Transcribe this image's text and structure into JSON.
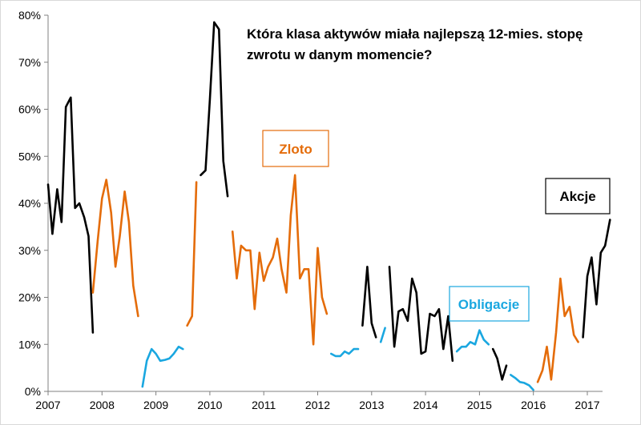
{
  "chart_data": {
    "type": "line",
    "title_lines": [
      "Która klasa aktywów miała najlepszą 12-mies. stopę",
      "zwrotu w danym momencie?"
    ],
    "xlabel": "",
    "ylabel": "",
    "xlim": [
      2007,
      2017.9
    ],
    "ylim": [
      0,
      80
    ],
    "x_ticks": [
      "2007",
      "2008",
      "2009",
      "2010",
      "2011",
      "2012",
      "2013",
      "2014",
      "2015",
      "2016",
      "2017"
    ],
    "y_ticks": [
      "0%",
      "10%",
      "20%",
      "30%",
      "40%",
      "50%",
      "60%",
      "70%",
      "80%"
    ],
    "grid": false,
    "colors": {
      "Akcje": "#000000",
      "Zloto": "#E46C0A",
      "Obligacje": "#1AA7E0"
    },
    "labels": {
      "zloto": "Zloto",
      "akcje": "Akcje",
      "obligacje": "Obligacje"
    },
    "segments": [
      {
        "series": "Akcje",
        "points": [
          [
            2007.0,
            44
          ],
          [
            2007.08,
            33.5
          ],
          [
            2007.17,
            43
          ],
          [
            2007.25,
            36
          ],
          [
            2007.33,
            60.5
          ],
          [
            2007.42,
            62.5
          ],
          [
            2007.5,
            39
          ],
          [
            2007.58,
            40
          ],
          [
            2007.67,
            37
          ],
          [
            2007.75,
            33
          ],
          [
            2007.83,
            12.5
          ]
        ]
      },
      {
        "series": "Zloto",
        "points": [
          [
            2007.83,
            21
          ],
          [
            2007.92,
            32
          ],
          [
            2008.0,
            41
          ],
          [
            2008.08,
            45
          ],
          [
            2008.17,
            38
          ],
          [
            2008.25,
            26.5
          ],
          [
            2008.33,
            33
          ],
          [
            2008.42,
            42.5
          ],
          [
            2008.5,
            36
          ],
          [
            2008.58,
            22.5
          ],
          [
            2008.67,
            16
          ]
        ]
      },
      {
        "series": "Obligacje",
        "points": [
          [
            2008.75,
            1
          ],
          [
            2008.83,
            6.5
          ],
          [
            2008.92,
            9
          ],
          [
            2009.0,
            8
          ],
          [
            2009.08,
            6.5
          ],
          [
            2009.17,
            6.7
          ],
          [
            2009.25,
            7
          ],
          [
            2009.33,
            8
          ],
          [
            2009.42,
            9.5
          ],
          [
            2009.5,
            9
          ]
        ]
      },
      {
        "series": "Zloto",
        "points": [
          [
            2009.58,
            14
          ],
          [
            2009.67,
            16
          ],
          [
            2009.75,
            44.5
          ]
        ]
      },
      {
        "series": "Akcje",
        "points": [
          [
            2009.83,
            46
          ],
          [
            2009.92,
            47
          ],
          [
            2010.0,
            62
          ],
          [
            2010.08,
            78.5
          ],
          [
            2010.17,
            77
          ],
          [
            2010.25,
            49
          ],
          [
            2010.33,
            41.5
          ]
        ]
      },
      {
        "series": "Zloto",
        "points": [
          [
            2010.42,
            34
          ],
          [
            2010.5,
            24
          ],
          [
            2010.58,
            31
          ],
          [
            2010.67,
            30
          ],
          [
            2010.75,
            30
          ],
          [
            2010.83,
            17.5
          ],
          [
            2010.92,
            29.5
          ],
          [
            2011.0,
            23.5
          ],
          [
            2011.08,
            26.5
          ],
          [
            2011.17,
            28.5
          ],
          [
            2011.25,
            32.5
          ],
          [
            2011.33,
            26
          ],
          [
            2011.42,
            21
          ],
          [
            2011.5,
            37.5
          ],
          [
            2011.58,
            46
          ],
          [
            2011.67,
            24
          ],
          [
            2011.75,
            26
          ],
          [
            2011.83,
            26
          ],
          [
            2011.92,
            10
          ],
          [
            2012.0,
            30.5
          ],
          [
            2012.08,
            20
          ],
          [
            2012.17,
            16.5
          ]
        ]
      },
      {
        "series": "Obligacje",
        "points": [
          [
            2012.25,
            8
          ],
          [
            2012.33,
            7.5
          ],
          [
            2012.42,
            7.5
          ],
          [
            2012.5,
            8.5
          ],
          [
            2012.58,
            8
          ],
          [
            2012.67,
            9
          ],
          [
            2012.75,
            9
          ]
        ]
      },
      {
        "series": "Akcje",
        "points": [
          [
            2012.83,
            14
          ],
          [
            2012.92,
            26.5
          ],
          [
            2013.0,
            14.5
          ],
          [
            2013.08,
            11.5
          ]
        ]
      },
      {
        "series": "Obligacje",
        "points": [
          [
            2013.17,
            10.5
          ],
          [
            2013.25,
            13.5
          ]
        ]
      },
      {
        "series": "Akcje",
        "points": [
          [
            2013.33,
            26.5
          ],
          [
            2013.42,
            9.5
          ],
          [
            2013.5,
            17
          ],
          [
            2013.58,
            17.5
          ],
          [
            2013.67,
            15
          ],
          [
            2013.75,
            24
          ],
          [
            2013.83,
            21
          ],
          [
            2013.92,
            8
          ],
          [
            2014.0,
            8.5
          ],
          [
            2014.08,
            16.5
          ],
          [
            2014.17,
            16
          ],
          [
            2014.25,
            17.5
          ],
          [
            2014.33,
            9
          ],
          [
            2014.42,
            16
          ],
          [
            2014.5,
            6.5
          ]
        ]
      },
      {
        "series": "Obligacje",
        "points": [
          [
            2014.58,
            8.5
          ],
          [
            2014.67,
            9.5
          ],
          [
            2014.75,
            9.5
          ],
          [
            2014.83,
            10.5
          ],
          [
            2014.92,
            10
          ],
          [
            2015.0,
            13
          ],
          [
            2015.08,
            11
          ],
          [
            2015.17,
            10
          ]
        ]
      },
      {
        "series": "Akcje",
        "points": [
          [
            2015.25,
            9
          ],
          [
            2015.33,
            7
          ],
          [
            2015.42,
            2.5
          ],
          [
            2015.5,
            5.5
          ]
        ]
      },
      {
        "series": "Obligacje",
        "points": [
          [
            2015.58,
            3.5
          ],
          [
            2015.67,
            2.8
          ],
          [
            2015.75,
            2
          ],
          [
            2015.83,
            1.8
          ],
          [
            2015.92,
            1.3
          ],
          [
            2016.0,
            0.3
          ]
        ]
      },
      {
        "series": "Zloto",
        "points": [
          [
            2016.08,
            2
          ],
          [
            2016.17,
            4.5
          ],
          [
            2016.25,
            9.5
          ],
          [
            2016.33,
            2.5
          ],
          [
            2016.42,
            12.5
          ],
          [
            2016.5,
            24
          ],
          [
            2016.58,
            16
          ],
          [
            2016.67,
            18
          ],
          [
            2016.75,
            12
          ],
          [
            2016.83,
            10.5
          ]
        ]
      },
      {
        "series": "Akcje",
        "points": [
          [
            2016.92,
            11.5
          ],
          [
            2017.0,
            24.5
          ],
          [
            2017.08,
            28.5
          ],
          [
            2017.17,
            18.5
          ],
          [
            2017.25,
            29.5
          ],
          [
            2017.33,
            31
          ],
          [
            2017.42,
            36.5
          ]
        ]
      }
    ]
  }
}
